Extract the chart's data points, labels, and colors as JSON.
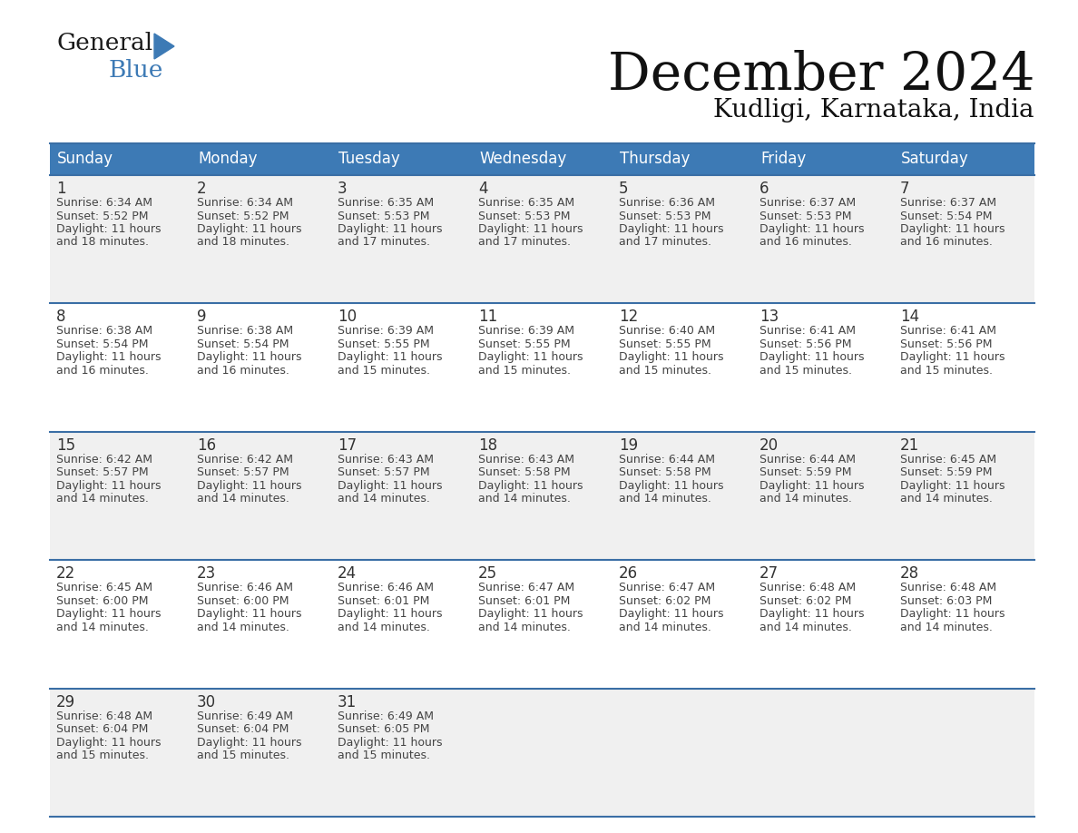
{
  "title": "December 2024",
  "subtitle": "Kudligi, Karnataka, India",
  "header_color": "#3d7ab5",
  "header_text_color": "#ffffff",
  "odd_row_bg": "#f0f0f0",
  "even_row_bg": "#ffffff",
  "last_row_bg": "#f0f0f0",
  "day_text_color": "#333333",
  "info_text_color": "#444444",
  "border_color": "#3a6ea5",
  "logo_triangle_color": "#3d7ab5",
  "logo_general_color": "#1a1a1a",
  "logo_blue_color": "#3d7ab5",
  "days_of_week": [
    "Sunday",
    "Monday",
    "Tuesday",
    "Wednesday",
    "Thursday",
    "Friday",
    "Saturday"
  ],
  "weeks": [
    [
      {
        "day": 1,
        "sunrise": "6:34 AM",
        "sunset": "5:52 PM",
        "daylight": "11 hours and 18 minutes."
      },
      {
        "day": 2,
        "sunrise": "6:34 AM",
        "sunset": "5:52 PM",
        "daylight": "11 hours and 18 minutes."
      },
      {
        "day": 3,
        "sunrise": "6:35 AM",
        "sunset": "5:53 PM",
        "daylight": "11 hours and 17 minutes."
      },
      {
        "day": 4,
        "sunrise": "6:35 AM",
        "sunset": "5:53 PM",
        "daylight": "11 hours and 17 minutes."
      },
      {
        "day": 5,
        "sunrise": "6:36 AM",
        "sunset": "5:53 PM",
        "daylight": "11 hours and 17 minutes."
      },
      {
        "day": 6,
        "sunrise": "6:37 AM",
        "sunset": "5:53 PM",
        "daylight": "11 hours and 16 minutes."
      },
      {
        "day": 7,
        "sunrise": "6:37 AM",
        "sunset": "5:54 PM",
        "daylight": "11 hours and 16 minutes."
      }
    ],
    [
      {
        "day": 8,
        "sunrise": "6:38 AM",
        "sunset": "5:54 PM",
        "daylight": "11 hours and 16 minutes."
      },
      {
        "day": 9,
        "sunrise": "6:38 AM",
        "sunset": "5:54 PM",
        "daylight": "11 hours and 16 minutes."
      },
      {
        "day": 10,
        "sunrise": "6:39 AM",
        "sunset": "5:55 PM",
        "daylight": "11 hours and 15 minutes."
      },
      {
        "day": 11,
        "sunrise": "6:39 AM",
        "sunset": "5:55 PM",
        "daylight": "11 hours and 15 minutes."
      },
      {
        "day": 12,
        "sunrise": "6:40 AM",
        "sunset": "5:55 PM",
        "daylight": "11 hours and 15 minutes."
      },
      {
        "day": 13,
        "sunrise": "6:41 AM",
        "sunset": "5:56 PM",
        "daylight": "11 hours and 15 minutes."
      },
      {
        "day": 14,
        "sunrise": "6:41 AM",
        "sunset": "5:56 PM",
        "daylight": "11 hours and 15 minutes."
      }
    ],
    [
      {
        "day": 15,
        "sunrise": "6:42 AM",
        "sunset": "5:57 PM",
        "daylight": "11 hours and 14 minutes."
      },
      {
        "day": 16,
        "sunrise": "6:42 AM",
        "sunset": "5:57 PM",
        "daylight": "11 hours and 14 minutes."
      },
      {
        "day": 17,
        "sunrise": "6:43 AM",
        "sunset": "5:57 PM",
        "daylight": "11 hours and 14 minutes."
      },
      {
        "day": 18,
        "sunrise": "6:43 AM",
        "sunset": "5:58 PM",
        "daylight": "11 hours and 14 minutes."
      },
      {
        "day": 19,
        "sunrise": "6:44 AM",
        "sunset": "5:58 PM",
        "daylight": "11 hours and 14 minutes."
      },
      {
        "day": 20,
        "sunrise": "6:44 AM",
        "sunset": "5:59 PM",
        "daylight": "11 hours and 14 minutes."
      },
      {
        "day": 21,
        "sunrise": "6:45 AM",
        "sunset": "5:59 PM",
        "daylight": "11 hours and 14 minutes."
      }
    ],
    [
      {
        "day": 22,
        "sunrise": "6:45 AM",
        "sunset": "6:00 PM",
        "daylight": "11 hours and 14 minutes."
      },
      {
        "day": 23,
        "sunrise": "6:46 AM",
        "sunset": "6:00 PM",
        "daylight": "11 hours and 14 minutes."
      },
      {
        "day": 24,
        "sunrise": "6:46 AM",
        "sunset": "6:01 PM",
        "daylight": "11 hours and 14 minutes."
      },
      {
        "day": 25,
        "sunrise": "6:47 AM",
        "sunset": "6:01 PM",
        "daylight": "11 hours and 14 minutes."
      },
      {
        "day": 26,
        "sunrise": "6:47 AM",
        "sunset": "6:02 PM",
        "daylight": "11 hours and 14 minutes."
      },
      {
        "day": 27,
        "sunrise": "6:48 AM",
        "sunset": "6:02 PM",
        "daylight": "11 hours and 14 minutes."
      },
      {
        "day": 28,
        "sunrise": "6:48 AM",
        "sunset": "6:03 PM",
        "daylight": "11 hours and 14 minutes."
      }
    ],
    [
      {
        "day": 29,
        "sunrise": "6:48 AM",
        "sunset": "6:04 PM",
        "daylight": "11 hours and 15 minutes."
      },
      {
        "day": 30,
        "sunrise": "6:49 AM",
        "sunset": "6:04 PM",
        "daylight": "11 hours and 15 minutes."
      },
      {
        "day": 31,
        "sunrise": "6:49 AM",
        "sunset": "6:05 PM",
        "daylight": "11 hours and 15 minutes."
      },
      null,
      null,
      null,
      null
    ]
  ]
}
